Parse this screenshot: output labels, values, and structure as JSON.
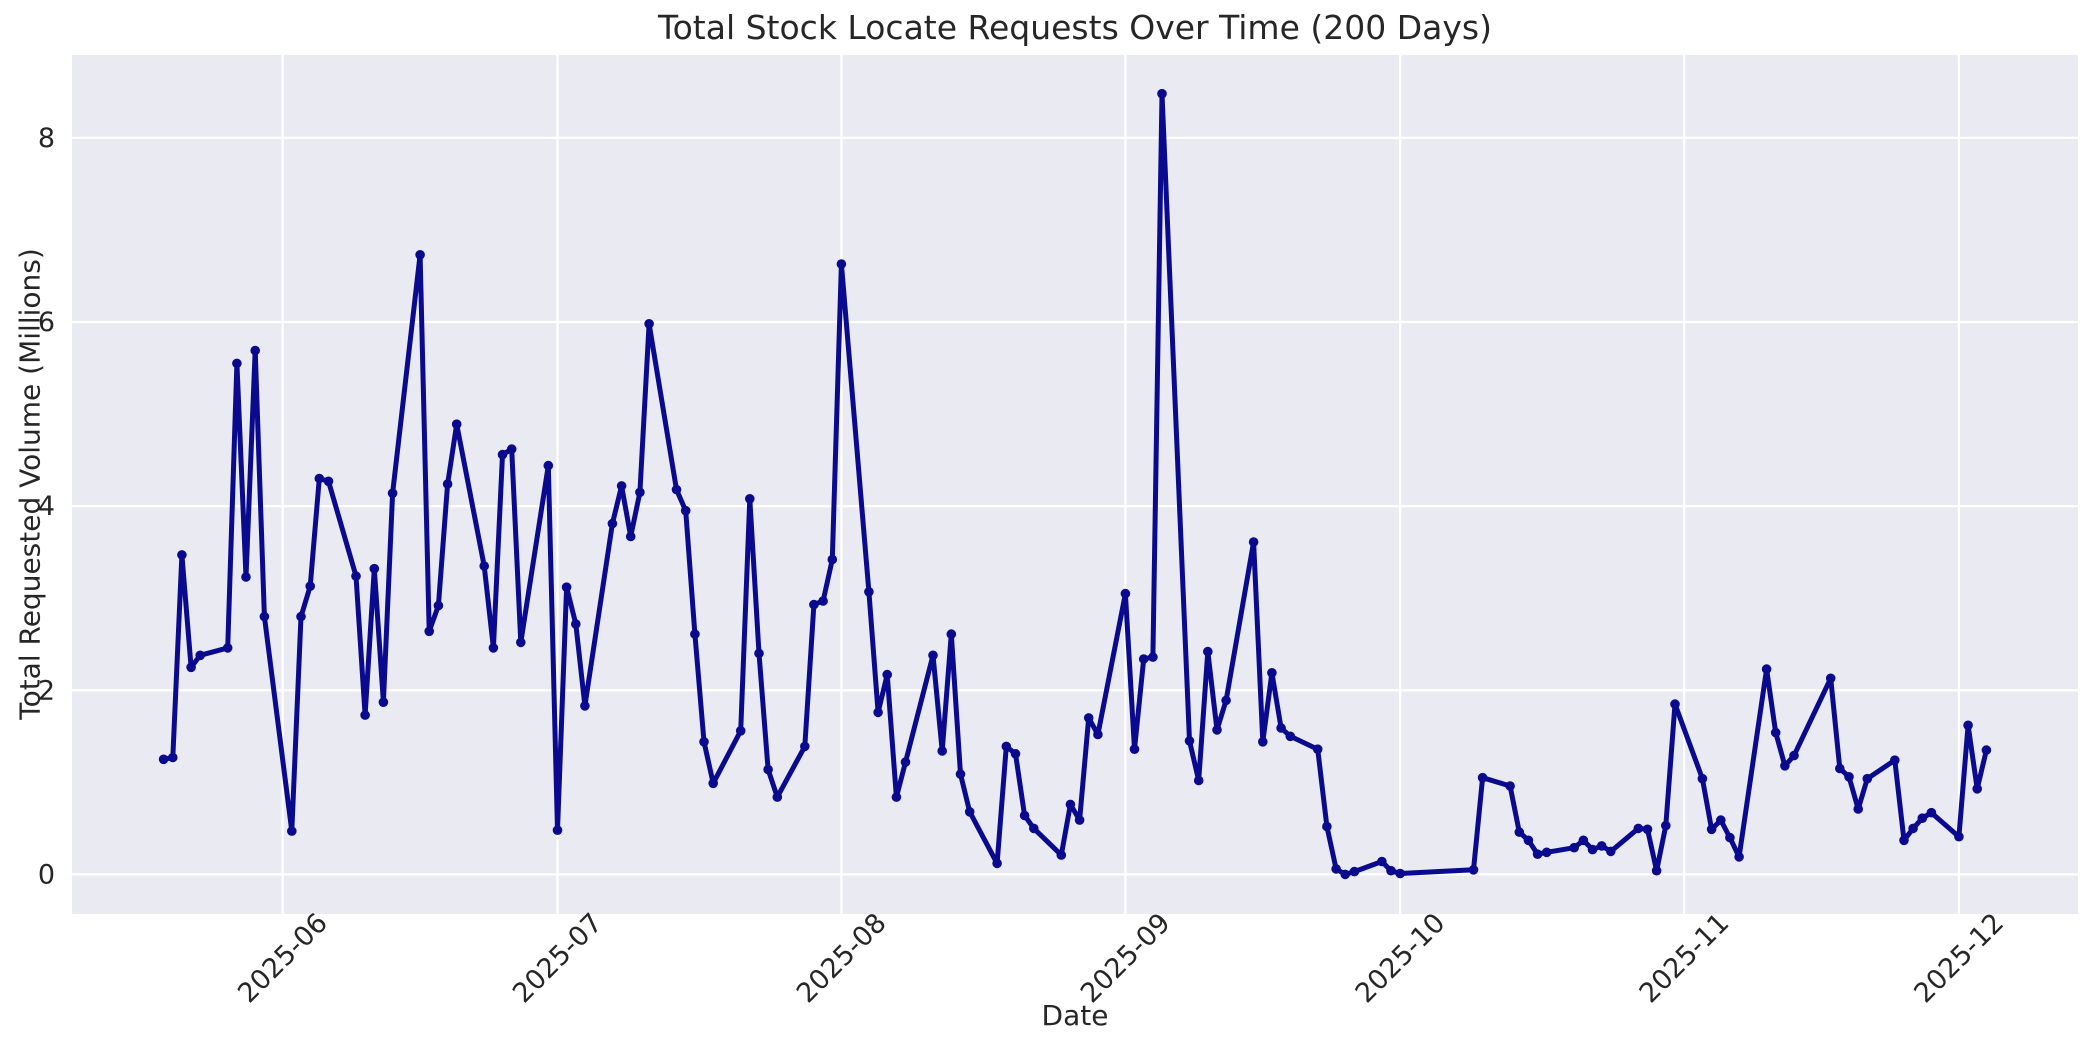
{
  "chart_data": {
    "type": "line",
    "title": "Total Stock Locate Requests Over Time (200 Days)",
    "xlabel": "Date",
    "ylabel": "Total Requested Volume (Millions)",
    "x": [
      "2025-05-19",
      "2025-05-20",
      "2025-05-21",
      "2025-05-22",
      "2025-05-23",
      "2025-05-26",
      "2025-05-27",
      "2025-05-28",
      "2025-05-29",
      "2025-05-30",
      "2025-06-02",
      "2025-06-03",
      "2025-06-04",
      "2025-06-05",
      "2025-06-06",
      "2025-06-09",
      "2025-06-10",
      "2025-06-11",
      "2025-06-12",
      "2025-06-13",
      "2025-06-16",
      "2025-06-17",
      "2025-06-18",
      "2025-06-19",
      "2025-06-20",
      "2025-06-23",
      "2025-06-24",
      "2025-06-25",
      "2025-06-26",
      "2025-06-27",
      "2025-06-30",
      "2025-07-01",
      "2025-07-02",
      "2025-07-03",
      "2025-07-04",
      "2025-07-07",
      "2025-07-08",
      "2025-07-09",
      "2025-07-10",
      "2025-07-11",
      "2025-07-14",
      "2025-07-15",
      "2025-07-16",
      "2025-07-17",
      "2025-07-18",
      "2025-07-21",
      "2025-07-22",
      "2025-07-23",
      "2025-07-24",
      "2025-07-25",
      "2025-07-28",
      "2025-07-29",
      "2025-07-30",
      "2025-07-31",
      "2025-08-01",
      "2025-08-04",
      "2025-08-05",
      "2025-08-06",
      "2025-08-07",
      "2025-08-08",
      "2025-08-11",
      "2025-08-12",
      "2025-08-13",
      "2025-08-14",
      "2025-08-15",
      "2025-08-18",
      "2025-08-19",
      "2025-08-20",
      "2025-08-21",
      "2025-08-22",
      "2025-08-25",
      "2025-08-26",
      "2025-08-27",
      "2025-08-28",
      "2025-08-29",
      "2025-09-01",
      "2025-09-02",
      "2025-09-03",
      "2025-09-04",
      "2025-09-05",
      "2025-09-08",
      "2025-09-09",
      "2025-09-10",
      "2025-09-11",
      "2025-09-12",
      "2025-09-15",
      "2025-09-16",
      "2025-09-17",
      "2025-09-18",
      "2025-09-19",
      "2025-09-22",
      "2025-09-23",
      "2025-09-24",
      "2025-09-25",
      "2025-09-26",
      "2025-09-29",
      "2025-09-30",
      "2025-10-01",
      "2025-10-09",
      "2025-10-10",
      "2025-10-13",
      "2025-10-14",
      "2025-10-15",
      "2025-10-16",
      "2025-10-17",
      "2025-10-20",
      "2025-10-21",
      "2025-10-22",
      "2025-10-23",
      "2025-10-24",
      "2025-10-27",
      "2025-10-28",
      "2025-10-29",
      "2025-10-30",
      "2025-10-31",
      "2025-11-03",
      "2025-11-04",
      "2025-11-05",
      "2025-11-06",
      "2025-11-07",
      "2025-11-10",
      "2025-11-11",
      "2025-11-12",
      "2025-11-13",
      "2025-11-17",
      "2025-11-18",
      "2025-11-19",
      "2025-11-20",
      "2025-11-21",
      "2025-11-24",
      "2025-11-25",
      "2025-11-26",
      "2025-11-27",
      "2025-11-28",
      "2025-12-01",
      "2025-12-02",
      "2025-12-03",
      "2025-12-04"
    ],
    "values": [
      1.25,
      1.27,
      3.47,
      2.25,
      2.38,
      2.46,
      5.55,
      3.23,
      5.69,
      2.8,
      0.47,
      2.8,
      3.13,
      4.3,
      4.27,
      3.24,
      1.73,
      3.32,
      1.87,
      4.14,
      6.73,
      2.64,
      2.92,
      4.24,
      4.89,
      3.35,
      2.46,
      4.56,
      4.62,
      2.52,
      4.44,
      0.48,
      3.12,
      2.72,
      1.83,
      3.81,
      4.22,
      3.67,
      4.15,
      5.98,
      4.18,
      3.95,
      2.61,
      1.44,
      0.99,
      1.56,
      4.08,
      2.4,
      1.14,
      0.84,
      1.39,
      2.93,
      2.97,
      3.42,
      6.63,
      3.07,
      1.76,
      2.17,
      0.84,
      1.22,
      2.38,
      1.34,
      2.61,
      1.09,
      0.68,
      0.12,
      1.39,
      1.31,
      0.64,
      0.5,
      0.21,
      0.76,
      0.59,
      1.7,
      1.52,
      3.05,
      1.36,
      2.34,
      2.36,
      8.48,
      1.45,
      1.02,
      2.42,
      1.57,
      1.89,
      3.61,
      1.44,
      2.19,
      1.59,
      1.5,
      1.36,
      0.52,
      0.06,
      0.0,
      0.03,
      0.14,
      0.04,
      0.01,
      0.05,
      1.05,
      0.96,
      0.46,
      0.37,
      0.22,
      0.24,
      0.29,
      0.37,
      0.27,
      0.31,
      0.25,
      0.5,
      0.49,
      0.04,
      0.53,
      1.85,
      1.04,
      0.49,
      0.59,
      0.4,
      0.19,
      2.23,
      1.54,
      1.18,
      1.29,
      2.13,
      1.15,
      1.06,
      0.71,
      1.04,
      1.24,
      0.37,
      0.5,
      0.61,
      0.67,
      0.41,
      1.62,
      0.93,
      1.35
    ],
    "x_tick_dates": [
      "2025-06-01",
      "2025-07-01",
      "2025-08-01",
      "2025-09-01",
      "2025-10-01",
      "2025-11-01",
      "2025-12-01"
    ],
    "x_tick_labels": [
      "2025-06",
      "2025-07",
      "2025-08",
      "2025-09",
      "2025-10",
      "2025-11",
      "2025-12"
    ],
    "y_ticks": [
      0,
      2,
      4,
      6,
      8
    ],
    "xlim": [
      "2025-05-09",
      "2025-12-14"
    ],
    "ylim": [
      -0.43,
      8.9
    ],
    "grid": true,
    "legend": "none",
    "x_tick_rotation_deg": 45,
    "line_color": "#0a0a8e",
    "marker": "circle",
    "plot_bg_color": "#eaeaf2",
    "grid_color": "#ffffff",
    "text_color": "#262626"
  }
}
